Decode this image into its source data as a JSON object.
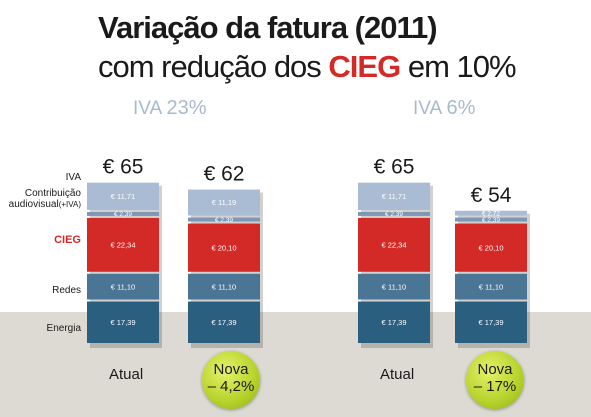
{
  "title_line1": "Variação da fatura (2011)",
  "title_line2_pre": "com redução dos ",
  "title_line2_hl": "CIEG",
  "title_line2_post": " em 10%",
  "colors": {
    "iva": "#a9bcd3",
    "contribuicao": "#7f97b4",
    "cieg": "#d42a27",
    "redes": "#4b7595",
    "energia": "#2a5f80",
    "accent": "#d42a27",
    "bubble": "#b5d22a"
  },
  "chart_data": {
    "type": "bar",
    "stacked": true,
    "currency": "€",
    "categories": [
      "IVA",
      "Contribuição audiovisual (+IVA)",
      "CIEG",
      "Redes",
      "Energia"
    ],
    "row_labels": {
      "iva": "IVA",
      "contrib_line1": "Contribuição",
      "contrib_line2": "audiovisual",
      "contrib_suffix": "(+IVA)",
      "cieg": "CIEG",
      "redes": "Redes",
      "energia": "Energia"
    },
    "groups": [
      {
        "label_prefix": "IVA ",
        "label_pct": "23%",
        "bars": [
          {
            "total_label": "€ 65",
            "segments": [
              17.39,
              11.1,
              22.34,
              2.39,
              11.71
            ],
            "segment_labels": [
              "€ 17,39",
              "€ 11,10",
              "€ 22,34",
              "€ 2,39",
              "€ 11,71"
            ],
            "caption": "Atual",
            "badge": ""
          },
          {
            "total_label": "€ 62",
            "segments": [
              17.39,
              11.1,
              20.1,
              2.39,
              11.19
            ],
            "segment_labels": [
              "€ 17,39",
              "€ 11,10",
              "€ 20,10",
              "€ 2,39",
              "€ 11,19"
            ],
            "caption": "",
            "badge": "Nova|– 4,2%"
          }
        ]
      },
      {
        "label_prefix": "IVA ",
        "label_pct": "6%",
        "bars": [
          {
            "total_label": "€ 65",
            "segments": [
              17.39,
              11.1,
              22.34,
              2.39,
              11.71
            ],
            "segment_labels": [
              "€ 17,39",
              "€ 11,10",
              "€ 22,34",
              "€ 2,39",
              "€ 11,71"
            ],
            "caption": "Atual",
            "badge": ""
          },
          {
            "total_label": "€ 54",
            "segments": [
              17.39,
              11.1,
              20.1,
              2.39,
              2.72
            ],
            "segment_labels": [
              "€ 17,39",
              "€ 11,10",
              "€ 20,10",
              "€ 2,39",
              "€ 2,72"
            ],
            "caption": "",
            "badge": "Nova|– 17%"
          }
        ]
      }
    ]
  }
}
